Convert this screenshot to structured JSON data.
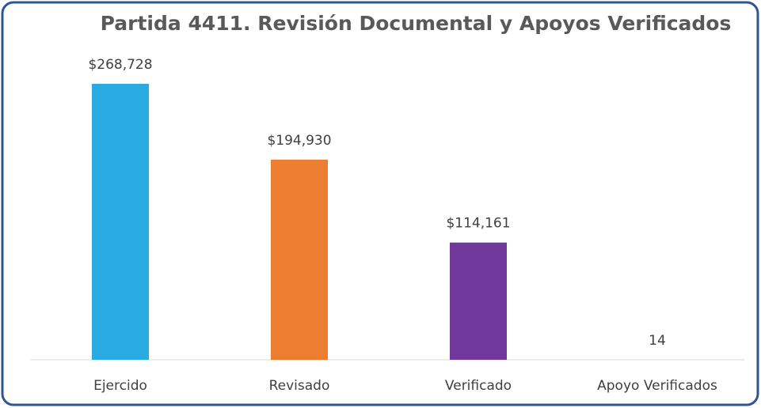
{
  "chart_data": {
    "type": "bar",
    "title": "Partida 4411. Revisión Documental y Apoyos Verificados",
    "categories": [
      "Ejercido",
      "Revisado",
      "Verificado",
      "Apoyo Verificados"
    ],
    "values": [
      268728,
      194930,
      114161,
      14
    ],
    "value_labels": [
      "$268,728",
      "$194,930",
      "$114,161",
      "14"
    ],
    "colors": [
      "#29abe2",
      "#ed7d31",
      "#70389a",
      "#a5a5a5"
    ]
  }
}
